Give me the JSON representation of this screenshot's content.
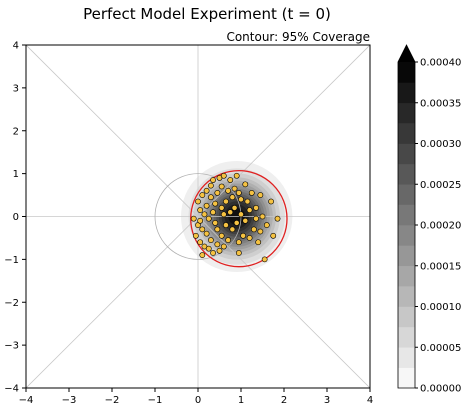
{
  "chart_data": {
    "type": "heatmap",
    "title": "Perfect Model Experiment (t = 0)",
    "subtitle": "Contour: 95% Coverage",
    "xlabel": "",
    "ylabel": "",
    "xlim": [
      -4,
      4
    ],
    "ylim": [
      -4,
      4
    ],
    "x_ticks": [
      "−4",
      "−3",
      "−2",
      "−1",
      "0",
      "1",
      "2",
      "3",
      "4"
    ],
    "y_ticks": [
      "−4",
      "−3",
      "−2",
      "−1",
      "0",
      "1",
      "2",
      "3",
      "4"
    ],
    "density": {
      "center": [
        0.9,
        0.0
      ],
      "peak": 0.0004,
      "sigma": 0.55
    },
    "coverage_contour": {
      "label": "95% Coverage",
      "center": [
        0.95,
        -0.05
      ],
      "radius": 1.12,
      "color": "#e02020"
    },
    "reference_circle": {
      "center": [
        0.0,
        0.0
      ],
      "radius": 1.0,
      "color": "#b0b0b0"
    },
    "reference_lines": [
      "y = x",
      "y = -x",
      "x = 0",
      "y = 0"
    ],
    "points_color": "#f5c242",
    "points": [
      [
        0.0,
        0.35
      ],
      [
        0.1,
        0.5
      ],
      [
        0.2,
        0.6
      ],
      [
        0.3,
        0.72
      ],
      [
        0.35,
        0.85
      ],
      [
        0.5,
        0.9
      ],
      [
        0.6,
        0.95
      ],
      [
        0.75,
        0.85
      ],
      [
        0.55,
        0.7
      ],
      [
        0.45,
        0.55
      ],
      [
        0.7,
        0.6
      ],
      [
        0.85,
        0.65
      ],
      [
        0.95,
        0.55
      ],
      [
        0.8,
        0.45
      ],
      [
        1.0,
        0.4
      ],
      [
        0.65,
        0.35
      ],
      [
        0.4,
        0.3
      ],
      [
        0.55,
        0.2
      ],
      [
        0.05,
        0.15
      ],
      [
        0.15,
        0.05
      ],
      [
        0.25,
        -0.05
      ],
      [
        0.0,
        -0.2
      ],
      [
        0.1,
        -0.3
      ],
      [
        0.2,
        -0.4
      ],
      [
        -0.05,
        -0.45
      ],
      [
        0.05,
        -0.6
      ],
      [
        0.15,
        -0.7
      ],
      [
        0.25,
        -0.75
      ],
      [
        0.35,
        -0.85
      ],
      [
        0.3,
        -0.55
      ],
      [
        0.45,
        -0.65
      ],
      [
        0.5,
        -0.8
      ],
      [
        0.6,
        -0.7
      ],
      [
        0.7,
        -0.55
      ],
      [
        0.55,
        -0.45
      ],
      [
        0.45,
        -0.3
      ],
      [
        0.65,
        -0.2
      ],
      [
        0.8,
        -0.3
      ],
      [
        0.9,
        -0.15
      ],
      [
        1.0,
        0.05
      ],
      [
        1.1,
        -0.1
      ],
      [
        1.2,
        0.15
      ],
      [
        1.35,
        0.2
      ],
      [
        1.5,
        0.0
      ],
      [
        1.6,
        -0.2
      ],
      [
        1.45,
        -0.35
      ],
      [
        1.3,
        -0.3
      ],
      [
        1.2,
        -0.5
      ],
      [
        1.05,
        -0.45
      ],
      [
        0.95,
        -0.6
      ],
      [
        1.4,
        -0.6
      ],
      [
        1.75,
        -0.45
      ],
      [
        1.85,
        -0.05
      ],
      [
        1.7,
        0.35
      ],
      [
        0.85,
        0.2
      ],
      [
        0.75,
        0.1
      ],
      [
        1.25,
        0.55
      ],
      [
        1.45,
        0.5
      ],
      [
        0.35,
        0.1
      ],
      [
        0.6,
        0.05
      ],
      [
        1.15,
        0.35
      ],
      [
        1.35,
        -0.05
      ],
      [
        1.55,
        -1.0
      ],
      [
        0.95,
        -0.85
      ],
      [
        0.1,
        -0.9
      ],
      [
        -0.1,
        -0.05
      ],
      [
        0.2,
        0.25
      ],
      [
        0.4,
        -0.15
      ],
      [
        0.9,
        0.95
      ],
      [
        1.1,
        0.75
      ],
      [
        0.3,
        0.45
      ],
      [
        0.05,
        -0.1
      ]
    ],
    "colorbar": {
      "min": 0.0,
      "max": 0.0004,
      "ticks": [
        "0.00000",
        "0.00005",
        "0.00010",
        "0.00015",
        "0.00020",
        "0.00025",
        "0.00030",
        "0.00035",
        "0.00040"
      ],
      "levels": 16,
      "extend": "max"
    }
  }
}
